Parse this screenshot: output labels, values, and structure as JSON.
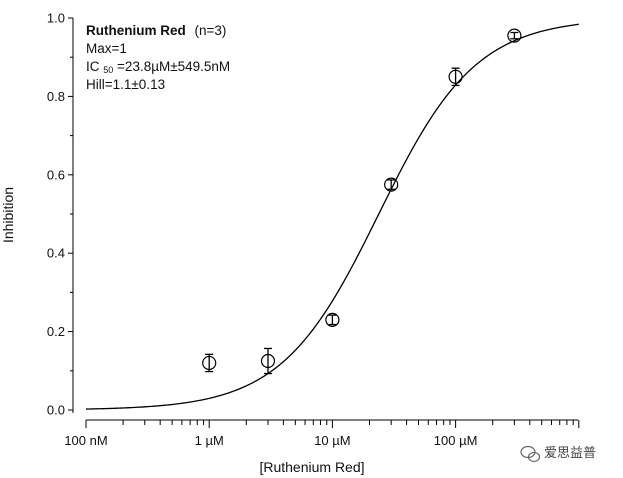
{
  "chart_data": {
    "type": "scatter",
    "title": "",
    "xlabel": "[Ruthenium Red]",
    "ylabel": "Inhibition",
    "x_scale": "log",
    "xlim": [
      "100 nM",
      "1 mM"
    ],
    "ylim": [
      0,
      1
    ],
    "x_ticks": [
      "100 nM",
      "1 µM",
      "10 µM",
      "100 µM"
    ],
    "y_ticks": [
      "0.0",
      "0.2",
      "0.4",
      "0.6",
      "0.8",
      "1.0"
    ],
    "grid": false,
    "series": [
      {
        "name": "Ruthenium Red",
        "color": "#000000",
        "x": [
          "1 µM",
          "3 µM",
          "10 µM",
          "30 µM",
          "100 µM",
          "300 µM"
        ],
        "x_um": [
          1,
          3,
          10,
          30,
          100,
          300
        ],
        "y": [
          0.12,
          0.125,
          0.23,
          0.575,
          0.85,
          0.955
        ],
        "error": [
          0.022,
          0.032,
          0.012,
          0.012,
          0.022,
          0.008
        ]
      }
    ],
    "fit": {
      "model": "Hill",
      "max": 1,
      "ic50_um": 23.8,
      "hill": 1.1,
      "x_range_um": [
        0.1,
        1000
      ]
    },
    "annotation": {
      "name": "Ruthenium Red",
      "n": "(n=3)",
      "max": "Max=1",
      "ic50_prefix": "IC",
      "ic50_sub": "50",
      "ic50_value": "=23.8µM±549.5nM",
      "hill": "Hill=1.1±0.13"
    },
    "watermark": "爱思益普"
  }
}
